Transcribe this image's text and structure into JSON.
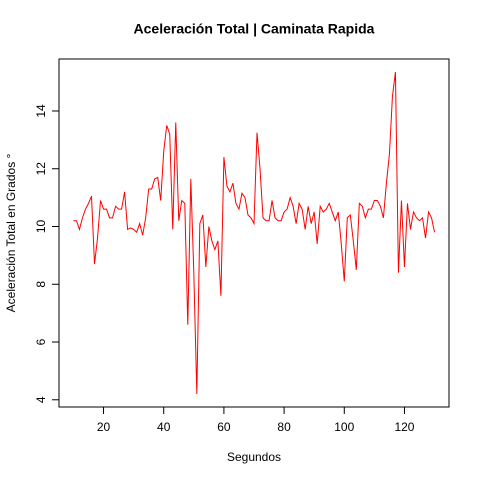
{
  "chart_data": {
    "type": "line",
    "title": "Aceleración Total | Caminata Rapida",
    "x_label": "Segundos",
    "y_label": "Aceleración Total en Grados °",
    "x": [
      10,
      11,
      12,
      13,
      14,
      15,
      16,
      17,
      18,
      19,
      20,
      21,
      22,
      23,
      24,
      25,
      26,
      27,
      28,
      29,
      30,
      31,
      32,
      33,
      34,
      35,
      36,
      37,
      38,
      39,
      40,
      41,
      42,
      43,
      44,
      45,
      46,
      47,
      48,
      49,
      50,
      51,
      52,
      53,
      54,
      55,
      56,
      57,
      58,
      59,
      60,
      61,
      62,
      63,
      64,
      65,
      66,
      67,
      68,
      69,
      70,
      71,
      72,
      73,
      74,
      75,
      76,
      77,
      78,
      79,
      80,
      81,
      82,
      83,
      84,
      85,
      86,
      87,
      88,
      89,
      90,
      91,
      92,
      93,
      94,
      95,
      96,
      97,
      98,
      99,
      100,
      101,
      102,
      103,
      104,
      105,
      106,
      107,
      108,
      109,
      110,
      111,
      112,
      113,
      114,
      115,
      116,
      117,
      118,
      119,
      120,
      121,
      122,
      123,
      124,
      125,
      126,
      127,
      128,
      129,
      130
    ],
    "series": [
      {
        "color": "#ff0000",
        "values": [
          10.2,
          10.2,
          9.9,
          10.3,
          10.6,
          10.8,
          11.05,
          8.7,
          9.6,
          10.9,
          10.6,
          10.6,
          10.3,
          10.3,
          10.7,
          10.6,
          10.6,
          11.2,
          9.9,
          9.95,
          9.9,
          9.8,
          10.1,
          9.7,
          10.3,
          11.3,
          11.3,
          11.65,
          11.7,
          10.9,
          12.6,
          13.5,
          13.2,
          9.9,
          13.6,
          10.2,
          10.9,
          10.8,
          6.6,
          11.65,
          8.4,
          4.2,
          10.1,
          10.4,
          8.6,
          10.0,
          9.5,
          9.2,
          9.5,
          7.6,
          12.4,
          11.4,
          11.2,
          11.5,
          10.8,
          10.6,
          11.15,
          11.0,
          10.4,
          10.3,
          10.1,
          13.25,
          12.0,
          10.3,
          10.2,
          10.2,
          10.9,
          10.3,
          10.2,
          10.2,
          10.5,
          10.6,
          11.0,
          10.7,
          10.1,
          10.8,
          10.6,
          9.9,
          10.7,
          10.1,
          10.5,
          9.4,
          10.7,
          10.5,
          10.6,
          10.8,
          10.5,
          10.2,
          10.5,
          9.4,
          8.1,
          10.3,
          10.4,
          9.5,
          8.5,
          10.8,
          10.7,
          10.3,
          10.6,
          10.6,
          10.9,
          10.9,
          10.7,
          10.3,
          11.5,
          12.5,
          14.5,
          15.35,
          8.4,
          10.9,
          8.6,
          10.8,
          9.9,
          10.5,
          10.3,
          10.2,
          10.3,
          9.6,
          10.5,
          10.3,
          9.8
        ]
      }
    ],
    "xlim": [
      5.2,
      134.8
    ],
    "xticks": [
      20,
      40,
      60,
      80,
      100,
      120
    ],
    "ylim": [
      3.75,
      15.8
    ],
    "yticks": [
      4,
      6,
      8,
      10,
      12,
      14
    ]
  }
}
